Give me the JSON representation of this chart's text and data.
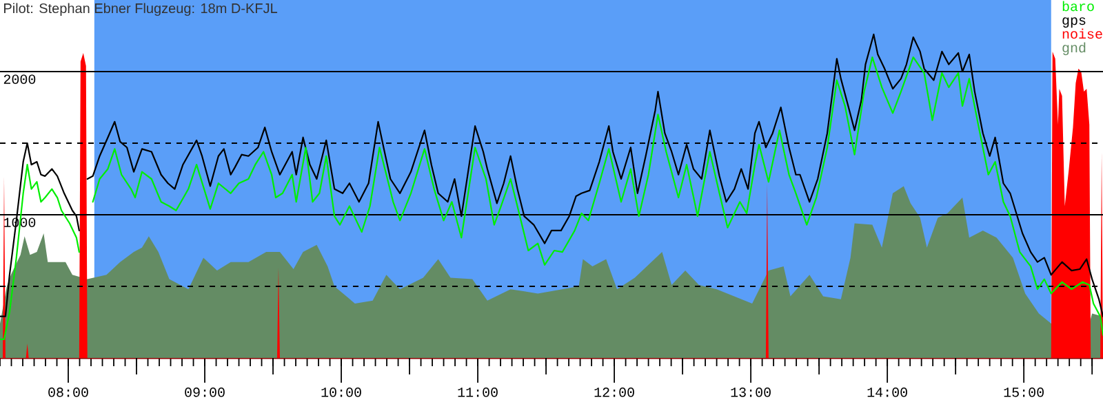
{
  "chart_data": {
    "type": "line",
    "title": "Pilot: Stephan Ebner Flugzeug: 18m D-KFJL",
    "xlim": [
      7.5,
      15.58
    ],
    "xticks": [
      {
        "value": 8,
        "label": "08:00"
      },
      {
        "value": 8.5,
        "label": null
      },
      {
        "value": 9,
        "label": "09:00"
      },
      {
        "value": 9.5,
        "label": null
      },
      {
        "value": 10,
        "label": "10:00"
      },
      {
        "value": 10.5,
        "label": null
      },
      {
        "value": 11,
        "label": "11:00"
      },
      {
        "value": 11.5,
        "label": null
      },
      {
        "value": 12,
        "label": "12:00"
      },
      {
        "value": 12.5,
        "label": null
      },
      {
        "value": 13,
        "label": "13:00"
      },
      {
        "value": 13.5,
        "label": null
      },
      {
        "value": 14,
        "label": "14:00"
      },
      {
        "value": 14.5,
        "label": null
      },
      {
        "value": 15,
        "label": "15:00"
      },
      {
        "value": 15.5,
        "label": null
      }
    ],
    "ylim": [
      0,
      2500
    ],
    "yticks": [
      {
        "value": 500,
        "label": null
      },
      1000,
      {
        "value": 1500,
        "label": null
      },
      2000
    ],
    "grid": "y",
    "legend": "top right",
    "bands": [
      {
        "axis": "x",
        "from": 8.19,
        "to": 15.2,
        "color": "#5a9ef8"
      }
    ],
    "series": [
      {
        "name": "baro",
        "color": "#00ee00",
        "x": [
          7.5,
          7.53,
          7.57,
          7.62,
          7.67,
          7.7,
          7.73,
          7.77,
          7.8,
          7.83,
          7.88,
          7.92,
          7.95,
          8.01,
          8.06,
          8.08,
          8.11,
          8.18,
          8.23,
          8.29,
          8.34,
          8.39,
          8.46,
          8.49,
          8.54,
          8.61,
          8.68,
          8.74,
          8.79,
          8.88,
          8.94,
          9.04,
          9.1,
          9.19,
          9.25,
          9.32,
          9.37,
          9.43,
          9.49,
          9.52,
          9.57,
          9.64,
          9.67,
          9.74,
          9.79,
          9.84,
          9.89,
          9.95,
          9.99,
          10.06,
          10.15,
          10.21,
          10.28,
          10.33,
          10.38,
          10.43,
          10.51,
          10.61,
          10.68,
          10.75,
          10.81,
          10.88,
          10.98,
          11.06,
          11.12,
          11.17,
          11.24,
          11.29,
          11.37,
          11.44,
          11.49,
          11.56,
          11.62,
          11.71,
          11.76,
          11.81,
          11.89,
          11.96,
          12.05,
          12.12,
          12.18,
          12.25,
          12.32,
          12.38,
          12.47,
          12.53,
          12.61,
          12.7,
          12.77,
          12.83,
          12.92,
          12.97,
          13.03,
          13.06,
          13.13,
          13.21,
          13.28,
          13.33,
          13.41,
          13.48,
          13.56,
          13.63,
          13.69,
          13.76,
          13.83,
          13.89,
          13.96,
          14.04,
          14.1,
          14.19,
          14.27,
          14.33,
          14.4,
          14.45,
          14.52,
          14.55,
          14.6,
          14.67,
          14.74,
          14.79,
          14.85,
          14.9,
          14.97,
          15.05,
          15.1,
          15.15,
          15.2,
          15.28,
          15.35,
          15.43,
          15.48,
          15.51,
          15.56,
          15.58
        ],
        "values": [
          130,
          130,
          320,
          700,
          1150,
          1350,
          1180,
          1230,
          1090,
          1120,
          1180,
          1120,
          1030,
          940,
          840,
          740,
          null,
          1090,
          1250,
          1320,
          1460,
          1280,
          1180,
          1120,
          1300,
          1250,
          1090,
          1060,
          1030,
          1180,
          1350,
          1040,
          1220,
          1150,
          1220,
          1250,
          1350,
          1440,
          1280,
          1120,
          1150,
          1280,
          1090,
          1470,
          1090,
          1150,
          1410,
          990,
          930,
          1060,
          880,
          1060,
          1470,
          1280,
          1090,
          960,
          1150,
          1460,
          1180,
          960,
          1090,
          840,
          1470,
          1250,
          930,
          1060,
          1250,
          1060,
          750,
          800,
          650,
          750,
          740,
          890,
          1010,
          960,
          1220,
          1460,
          1090,
          1320,
          990,
          1280,
          1700,
          1440,
          1120,
          1350,
          990,
          1440,
          1150,
          910,
          1090,
          1010,
          1350,
          1490,
          1230,
          1590,
          1280,
          1150,
          930,
          1120,
          1470,
          1940,
          1760,
          1420,
          1860,
          2100,
          1890,
          1710,
          1860,
          2100,
          1990,
          1660,
          1990,
          1890,
          1990,
          1760,
          1950,
          1610,
          1280,
          1370,
          1090,
          990,
          740,
          640,
          480,
          550,
          450,
          530,
          480,
          530,
          510,
          380,
          290,
          160
        ]
      },
      {
        "name": "gps",
        "color": "#000000",
        "x": [
          7.5,
          7.54,
          7.57,
          7.62,
          7.67,
          7.7,
          7.73,
          7.77,
          7.8,
          7.83,
          7.88,
          7.92,
          7.97,
          8.03,
          8.06,
          8.08,
          8.11,
          8.14,
          8.18,
          8.23,
          8.29,
          8.34,
          8.38,
          8.43,
          8.48,
          8.54,
          8.61,
          8.68,
          8.73,
          8.78,
          8.84,
          8.94,
          8.98,
          9.04,
          9.1,
          9.14,
          9.19,
          9.22,
          9.27,
          9.32,
          9.39,
          9.44,
          9.49,
          9.55,
          9.64,
          9.67,
          9.72,
          9.77,
          9.82,
          9.89,
          9.95,
          10.01,
          10.06,
          10.13,
          10.2,
          10.27,
          10.31,
          10.36,
          10.43,
          10.51,
          10.61,
          10.66,
          10.71,
          10.78,
          10.83,
          10.88,
          10.98,
          11.04,
          11.07,
          11.14,
          11.19,
          11.24,
          11.29,
          11.34,
          11.41,
          11.49,
          11.54,
          11.61,
          11.67,
          11.72,
          11.76,
          11.82,
          11.89,
          11.96,
          11.99,
          12.05,
          12.12,
          12.17,
          12.23,
          12.3,
          12.32,
          12.37,
          12.42,
          12.47,
          12.53,
          12.58,
          12.64,
          12.7,
          12.77,
          12.82,
          12.88,
          12.93,
          12.98,
          13.03,
          13.06,
          13.11,
          13.16,
          13.22,
          13.28,
          13.33,
          13.36,
          13.43,
          13.49,
          13.56,
          13.63,
          13.66,
          13.73,
          13.76,
          13.81,
          13.84,
          13.9,
          13.93,
          13.98,
          14.04,
          14.1,
          14.14,
          14.19,
          14.24,
          14.27,
          14.34,
          14.4,
          14.45,
          14.52,
          14.55,
          14.6,
          14.64,
          14.7,
          14.75,
          14.79,
          14.85,
          14.9,
          14.99,
          15.05,
          15.1,
          15.15,
          15.2,
          15.28,
          15.35,
          15.41,
          15.46,
          15.5,
          15.55,
          15.58
        ],
        "values": [
          290,
          290,
          580,
          960,
          1370,
          1500,
          1350,
          1370,
          1280,
          1270,
          1320,
          1270,
          1150,
          1030,
          990,
          890,
          null,
          1250,
          1270,
          1410,
          1540,
          1650,
          1510,
          1470,
          1300,
          1460,
          1440,
          1280,
          1220,
          1180,
          1350,
          1520,
          1410,
          1200,
          1410,
          1460,
          1280,
          1330,
          1420,
          1410,
          1470,
          1610,
          1440,
          1280,
          1440,
          1280,
          1540,
          1350,
          1250,
          1520,
          1180,
          1150,
          1220,
          1090,
          1220,
          1650,
          1470,
          1250,
          1150,
          1300,
          1590,
          1350,
          1150,
          1090,
          1250,
          990,
          1620,
          1440,
          1320,
          1080,
          1220,
          1410,
          1180,
          990,
          930,
          800,
          890,
          890,
          990,
          1130,
          1150,
          1170,
          1370,
          1620,
          1440,
          1250,
          1470,
          1150,
          1410,
          1730,
          1860,
          1570,
          1440,
          1280,
          1490,
          1320,
          1250,
          1590,
          1270,
          1090,
          1180,
          1320,
          1180,
          1570,
          1650,
          1470,
          1570,
          1750,
          1470,
          1280,
          1280,
          1090,
          1250,
          1570,
          2090,
          1950,
          1700,
          1590,
          1800,
          2050,
          2260,
          2120,
          2020,
          1880,
          1950,
          2050,
          2240,
          2140,
          2020,
          1940,
          2140,
          2050,
          2130,
          2000,
          2120,
          1860,
          1570,
          1410,
          1540,
          1220,
          1150,
          870,
          740,
          670,
          700,
          580,
          670,
          610,
          620,
          690,
          550,
          410,
          290
        ]
      },
      {
        "name": "noise",
        "type": "area",
        "color": "#ff0000",
        "x": [
          7.52,
          7.53,
          7.54,
          7.69,
          7.7,
          7.71,
          8.08,
          8.09,
          8.11,
          8.13,
          8.14,
          9.53,
          9.54,
          9.55,
          13.11,
          13.12,
          13.13,
          15.2,
          15.21,
          15.23,
          15.25,
          15.26,
          15.28,
          15.3,
          15.33,
          15.36,
          15.38,
          15.4,
          15.42,
          15.44,
          15.46,
          15.48,
          15.49,
          15.56,
          15.57,
          15.58
        ],
        "values": [
          0,
          1270,
          0,
          0,
          100,
          0,
          0,
          2070,
          2130,
          2040,
          0,
          0,
          630,
          0,
          0,
          1220,
          0,
          0,
          2140,
          2090,
          1630,
          1880,
          1830,
          1060,
          1320,
          1610,
          1920,
          2020,
          2000,
          1860,
          1880,
          1630,
          0,
          0,
          1440,
          0
        ]
      },
      {
        "name": "gnd",
        "type": "area",
        "color": "#648c64",
        "x": [
          7.5,
          7.55,
          7.58,
          7.65,
          7.68,
          7.72,
          7.77,
          7.82,
          7.85,
          7.98,
          8.03,
          8.14,
          8.28,
          8.38,
          8.48,
          8.54,
          8.59,
          8.66,
          8.74,
          8.88,
          8.99,
          9.09,
          9.19,
          9.32,
          9.45,
          9.55,
          9.65,
          9.72,
          9.82,
          9.9,
          9.95,
          10.1,
          10.23,
          10.33,
          10.43,
          10.6,
          10.71,
          10.8,
          10.96,
          11.07,
          11.24,
          11.44,
          11.74,
          11.77,
          11.84,
          11.94,
          12.02,
          12.15,
          12.25,
          12.35,
          12.42,
          12.52,
          12.62,
          12.75,
          13.01,
          13.13,
          13.24,
          13.29,
          13.43,
          13.53,
          13.66,
          13.73,
          13.76,
          13.89,
          13.96,
          14.04,
          14.12,
          14.17,
          14.24,
          14.29,
          14.37,
          14.44,
          14.55,
          14.6,
          14.7,
          14.8,
          14.92,
          15.01,
          15.11,
          15.2,
          15.48,
          15.5,
          15.58
        ],
        "values": [
          240,
          500,
          580,
          720,
          850,
          720,
          740,
          870,
          670,
          670,
          580,
          550,
          580,
          670,
          740,
          770,
          850,
          740,
          550,
          480,
          700,
          610,
          670,
          670,
          740,
          740,
          620,
          740,
          790,
          640,
          500,
          380,
          400,
          580,
          480,
          560,
          690,
          560,
          550,
          400,
          480,
          450,
          500,
          690,
          640,
          690,
          480,
          560,
          650,
          740,
          510,
          610,
          510,
          480,
          380,
          610,
          640,
          430,
          580,
          430,
          410,
          700,
          940,
          930,
          770,
          1150,
          1200,
          1080,
          980,
          770,
          980,
          1010,
          1120,
          840,
          890,
          840,
          700,
          450,
          310,
          240,
          240,
          310,
          290
        ]
      }
    ]
  }
}
